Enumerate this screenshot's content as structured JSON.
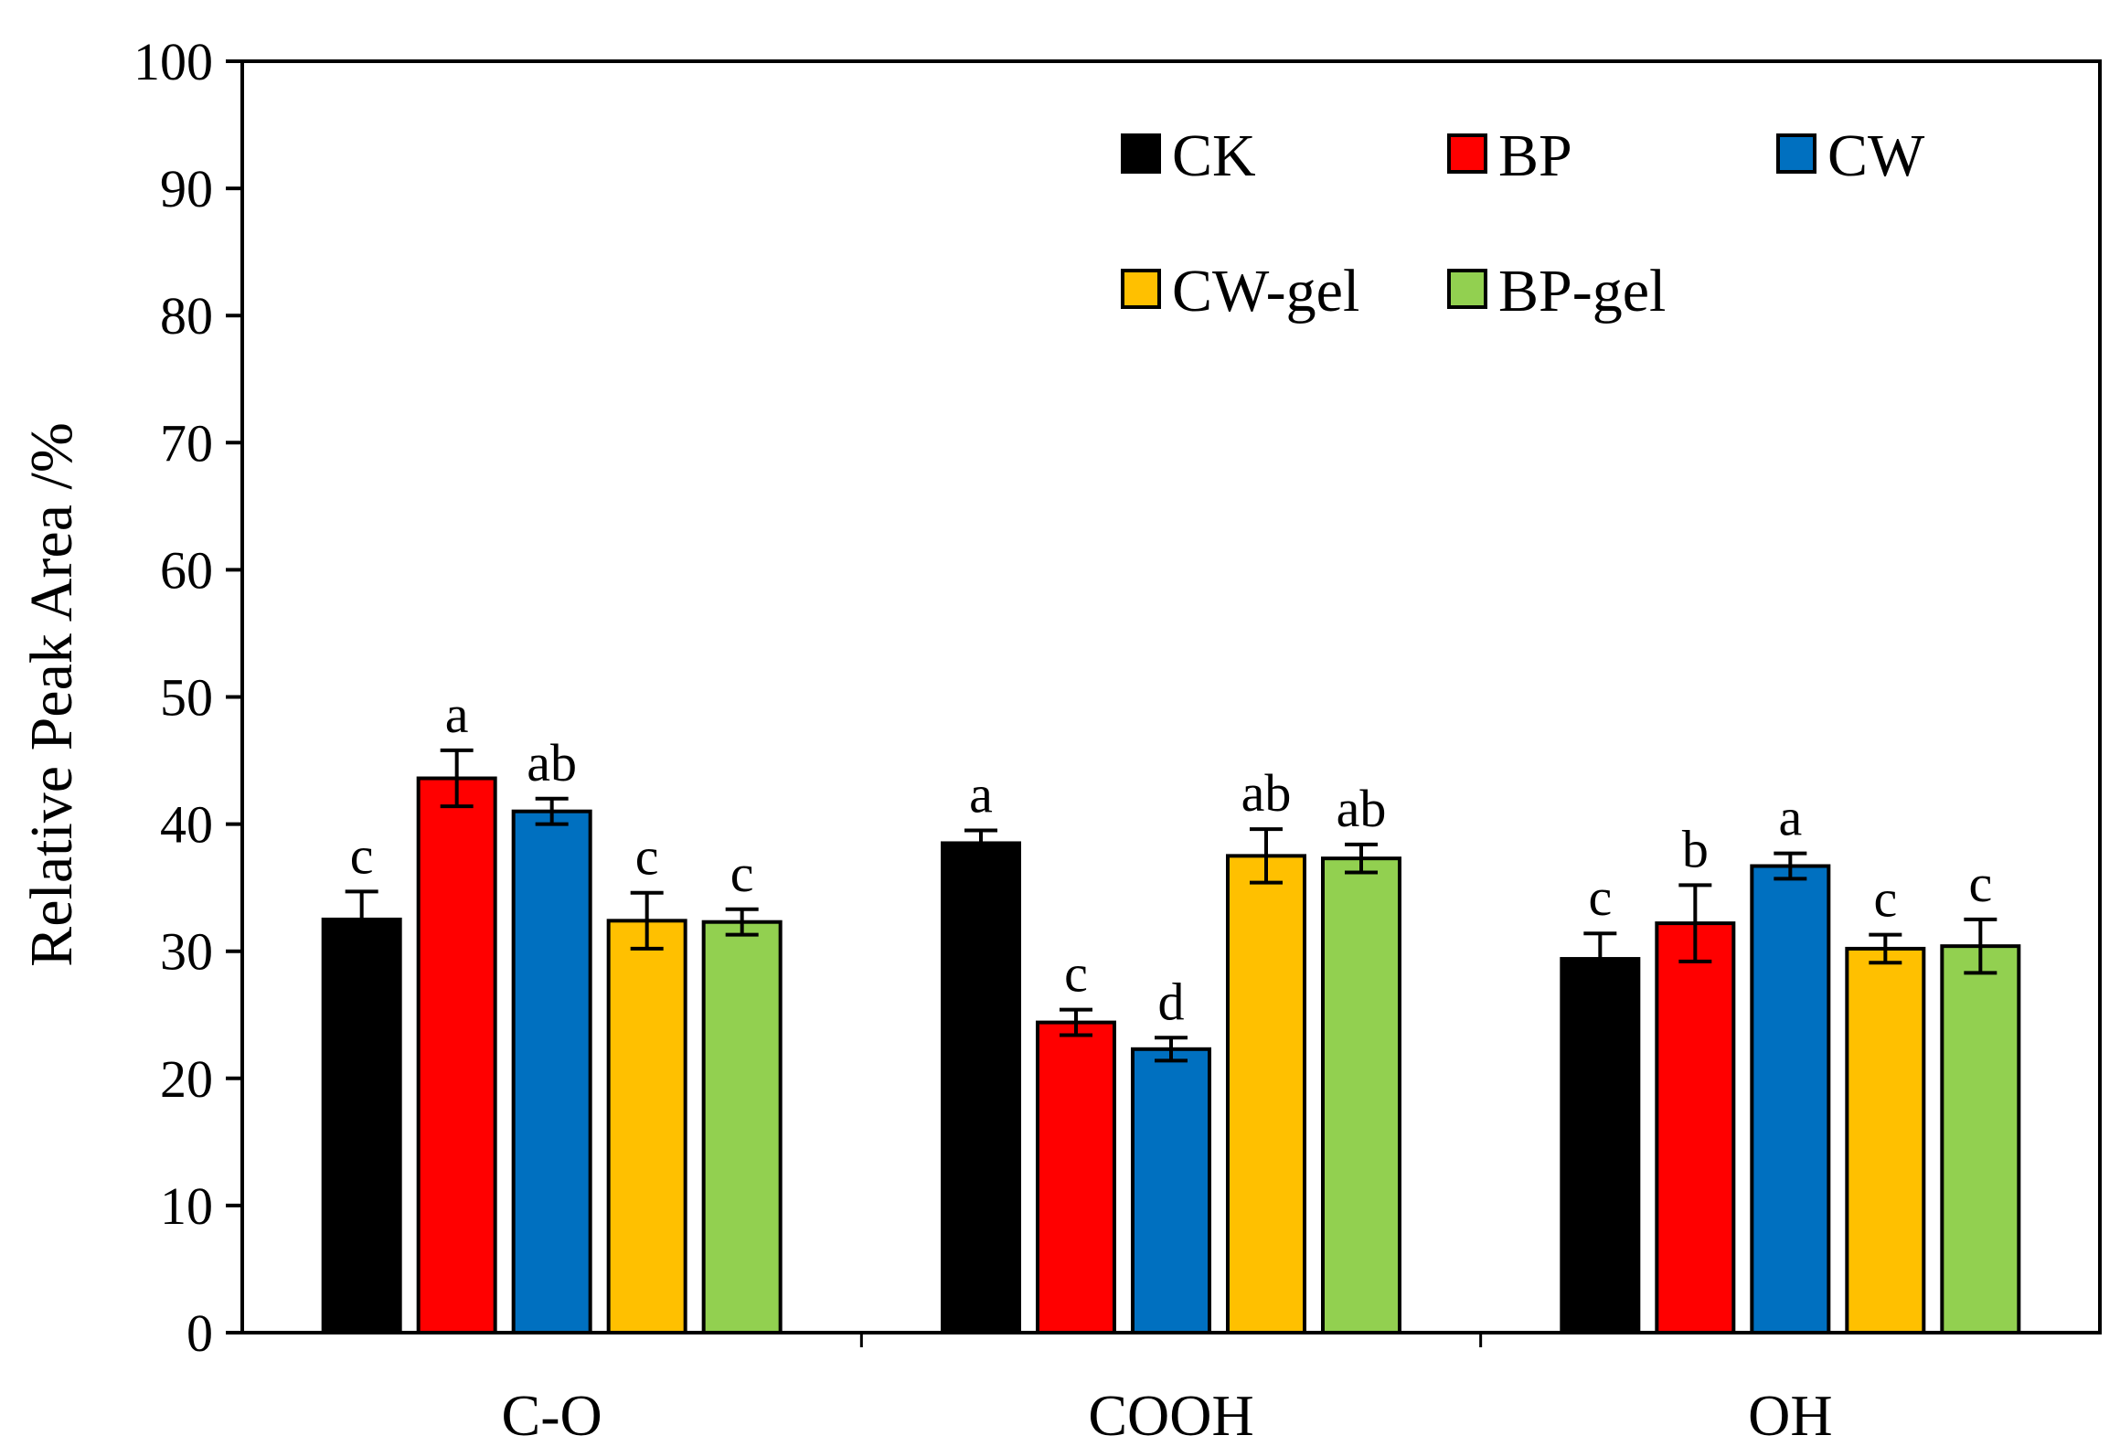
{
  "chart_data": {
    "type": "bar",
    "title": "",
    "xlabel": "",
    "ylabel": "Relative Peak Area /%",
    "ylim": [
      0,
      100
    ],
    "yticks": [
      0,
      10,
      20,
      30,
      40,
      50,
      60,
      70,
      80,
      90,
      100
    ],
    "categories": [
      "C-O",
      "COOH",
      "OH"
    ],
    "grid": false,
    "legend_position": "top-right",
    "series": [
      {
        "name": "CK",
        "color": "#000000",
        "values": [
          32.5,
          38.5,
          29.4
        ],
        "errors": [
          2.2,
          1.0,
          2.0
        ],
        "labels": [
          "c",
          "a",
          "c"
        ]
      },
      {
        "name": "BP",
        "color": "#ff0000",
        "values": [
          43.6,
          24.4,
          32.2
        ],
        "errors": [
          2.2,
          1.0,
          3.0
        ],
        "labels": [
          "a",
          "c",
          "b"
        ]
      },
      {
        "name": "CW",
        "color": "#0070c0",
        "values": [
          41.0,
          22.3,
          36.7
        ],
        "errors": [
          1.0,
          0.9,
          1.0
        ],
        "labels": [
          "ab",
          "d",
          "a"
        ]
      },
      {
        "name": "CW-gel",
        "color": "#ffc000",
        "values": [
          32.4,
          37.5,
          30.2
        ],
        "errors": [
          2.2,
          2.1,
          1.1
        ],
        "labels": [
          "c",
          "ab",
          "c"
        ]
      },
      {
        "name": "BP-gel",
        "color": "#92d050",
        "values": [
          32.3,
          37.3,
          30.4
        ],
        "errors": [
          1.0,
          1.1,
          2.1
        ],
        "labels": [
          "c",
          "ab",
          "c"
        ]
      }
    ]
  }
}
